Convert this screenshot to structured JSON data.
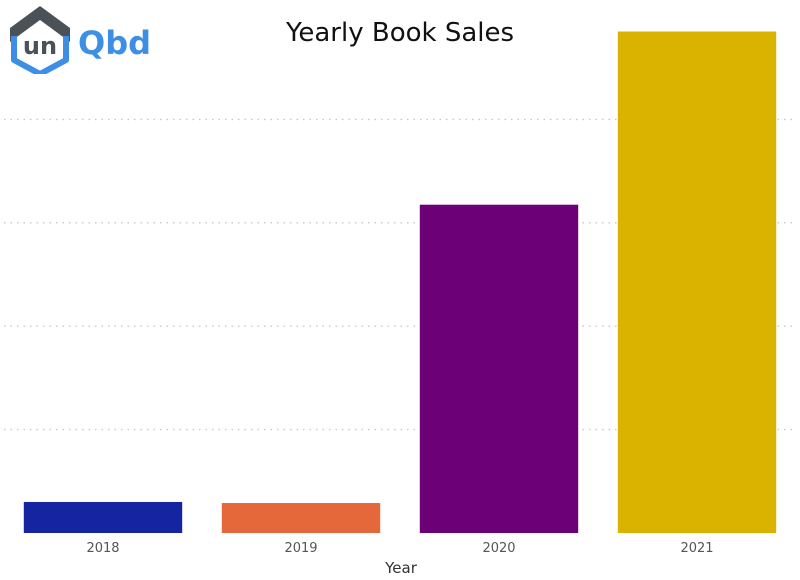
{
  "logo": {
    "text_left": "un",
    "text_right": "Qbd",
    "colors": {
      "dark": "#4a5157",
      "blue": "#3d8fe6"
    }
  },
  "chart_data": {
    "type": "bar",
    "title": "Yearly Book Sales",
    "xlabel": "Year",
    "ylabel": "",
    "categories": [
      "2018",
      "2019",
      "2020",
      "2021"
    ],
    "values": [
      6,
      5.8,
      63.5,
      97
    ],
    "colors": [
      "#1524a1",
      "#e5683a",
      "#6b0077",
      "#d9b300"
    ],
    "ylim": [
      0,
      100
    ],
    "gridlines": [
      20,
      40,
      60,
      80
    ],
    "grid": true,
    "legend": "none"
  }
}
